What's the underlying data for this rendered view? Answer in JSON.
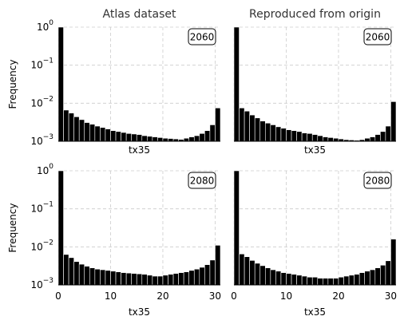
{
  "chart_data": [
    {
      "type": "bar",
      "title": "Atlas dataset",
      "badge": "2060",
      "xlabel": "tx35",
      "ylabel": "Frequency",
      "yscale": "log",
      "xlim": [
        0,
        31
      ],
      "ylim": [
        0.001,
        1
      ],
      "xticks": [
        "0",
        "10",
        "20",
        "30"
      ],
      "show_xticks": false,
      "show_yticks": true,
      "grid": true,
      "x": [
        0,
        1,
        2,
        3,
        4,
        5,
        6,
        7,
        8,
        9,
        10,
        11,
        12,
        13,
        14,
        15,
        16,
        17,
        18,
        19,
        20,
        21,
        22,
        23,
        24,
        25,
        26,
        27,
        28,
        29,
        30
      ],
      "values": [
        1.0,
        0.0066,
        0.0055,
        0.0044,
        0.0037,
        0.0031,
        0.0028,
        0.0025,
        0.0023,
        0.0021,
        0.0019,
        0.0018,
        0.0017,
        0.0016,
        0.00155,
        0.0015,
        0.0014,
        0.00135,
        0.0013,
        0.00125,
        0.0012,
        0.00118,
        0.00115,
        0.00112,
        0.0012,
        0.0013,
        0.0014,
        0.0016,
        0.0019,
        0.0027,
        0.0075
      ]
    },
    {
      "type": "bar",
      "title": "Reproduced from origin",
      "badge": "2060",
      "xlabel": "tx35",
      "ylabel": "",
      "yscale": "log",
      "xlim": [
        0,
        31
      ],
      "ylim": [
        0.001,
        1
      ],
      "xticks": [
        "0",
        "10",
        "20",
        "30"
      ],
      "show_xticks": false,
      "show_yticks": false,
      "grid": true,
      "x": [
        0,
        1,
        2,
        3,
        4,
        5,
        6,
        7,
        8,
        9,
        10,
        11,
        12,
        13,
        14,
        15,
        16,
        17,
        18,
        19,
        20,
        21,
        22,
        23,
        24,
        25,
        26,
        27,
        28,
        29,
        30
      ],
      "values": [
        1.0,
        0.0075,
        0.0062,
        0.0049,
        0.0041,
        0.0034,
        0.003,
        0.0027,
        0.0024,
        0.0022,
        0.002,
        0.0019,
        0.0018,
        0.00165,
        0.0016,
        0.0015,
        0.0014,
        0.0013,
        0.00125,
        0.0012,
        0.00115,
        0.0011,
        0.00108,
        0.00106,
        0.0011,
        0.0012,
        0.0013,
        0.0015,
        0.0018,
        0.0025,
        0.011
      ]
    },
    {
      "type": "bar",
      "title": "",
      "badge": "2080",
      "xlabel": "tx35",
      "ylabel": "Frequency",
      "yscale": "log",
      "xlim": [
        0,
        31
      ],
      "ylim": [
        0.001,
        1
      ],
      "xticks": [
        "0",
        "10",
        "20",
        "30"
      ],
      "show_xticks": true,
      "show_yticks": true,
      "grid": true,
      "x": [
        0,
        1,
        2,
        3,
        4,
        5,
        6,
        7,
        8,
        9,
        10,
        11,
        12,
        13,
        14,
        15,
        16,
        17,
        18,
        19,
        20,
        21,
        22,
        23,
        24,
        25,
        26,
        27,
        28,
        29,
        30
      ],
      "values": [
        1.0,
        0.0063,
        0.0052,
        0.0041,
        0.0035,
        0.0031,
        0.0028,
        0.0026,
        0.0025,
        0.0024,
        0.0023,
        0.0022,
        0.0021,
        0.00205,
        0.002,
        0.00195,
        0.0019,
        0.0018,
        0.0017,
        0.0017,
        0.0018,
        0.0019,
        0.002,
        0.0021,
        0.0022,
        0.0024,
        0.0026,
        0.0029,
        0.0034,
        0.0045,
        0.011
      ]
    },
    {
      "type": "bar",
      "title": "",
      "badge": "2080",
      "xlabel": "tx35",
      "ylabel": "",
      "yscale": "log",
      "xlim": [
        0,
        31
      ],
      "ylim": [
        0.001,
        1
      ],
      "xticks": [
        "0",
        "10",
        "20",
        "30"
      ],
      "show_xticks": true,
      "show_yticks": false,
      "grid": true,
      "x": [
        0,
        1,
        2,
        3,
        4,
        5,
        6,
        7,
        8,
        9,
        10,
        11,
        12,
        13,
        14,
        15,
        16,
        17,
        18,
        19,
        20,
        21,
        22,
        23,
        24,
        25,
        26,
        27,
        28,
        29,
        30
      ],
      "values": [
        1.0,
        0.0065,
        0.0055,
        0.0044,
        0.0037,
        0.0032,
        0.0028,
        0.0025,
        0.0023,
        0.0021,
        0.002,
        0.0019,
        0.0018,
        0.0017,
        0.0016,
        0.0016,
        0.0015,
        0.0015,
        0.0015,
        0.0015,
        0.0016,
        0.0017,
        0.0018,
        0.0019,
        0.0021,
        0.0023,
        0.0025,
        0.0028,
        0.0033,
        0.0043,
        0.016
      ]
    }
  ],
  "ytick_labels": [
    "10^0",
    "10^-1",
    "10^-2",
    "10^-3"
  ]
}
